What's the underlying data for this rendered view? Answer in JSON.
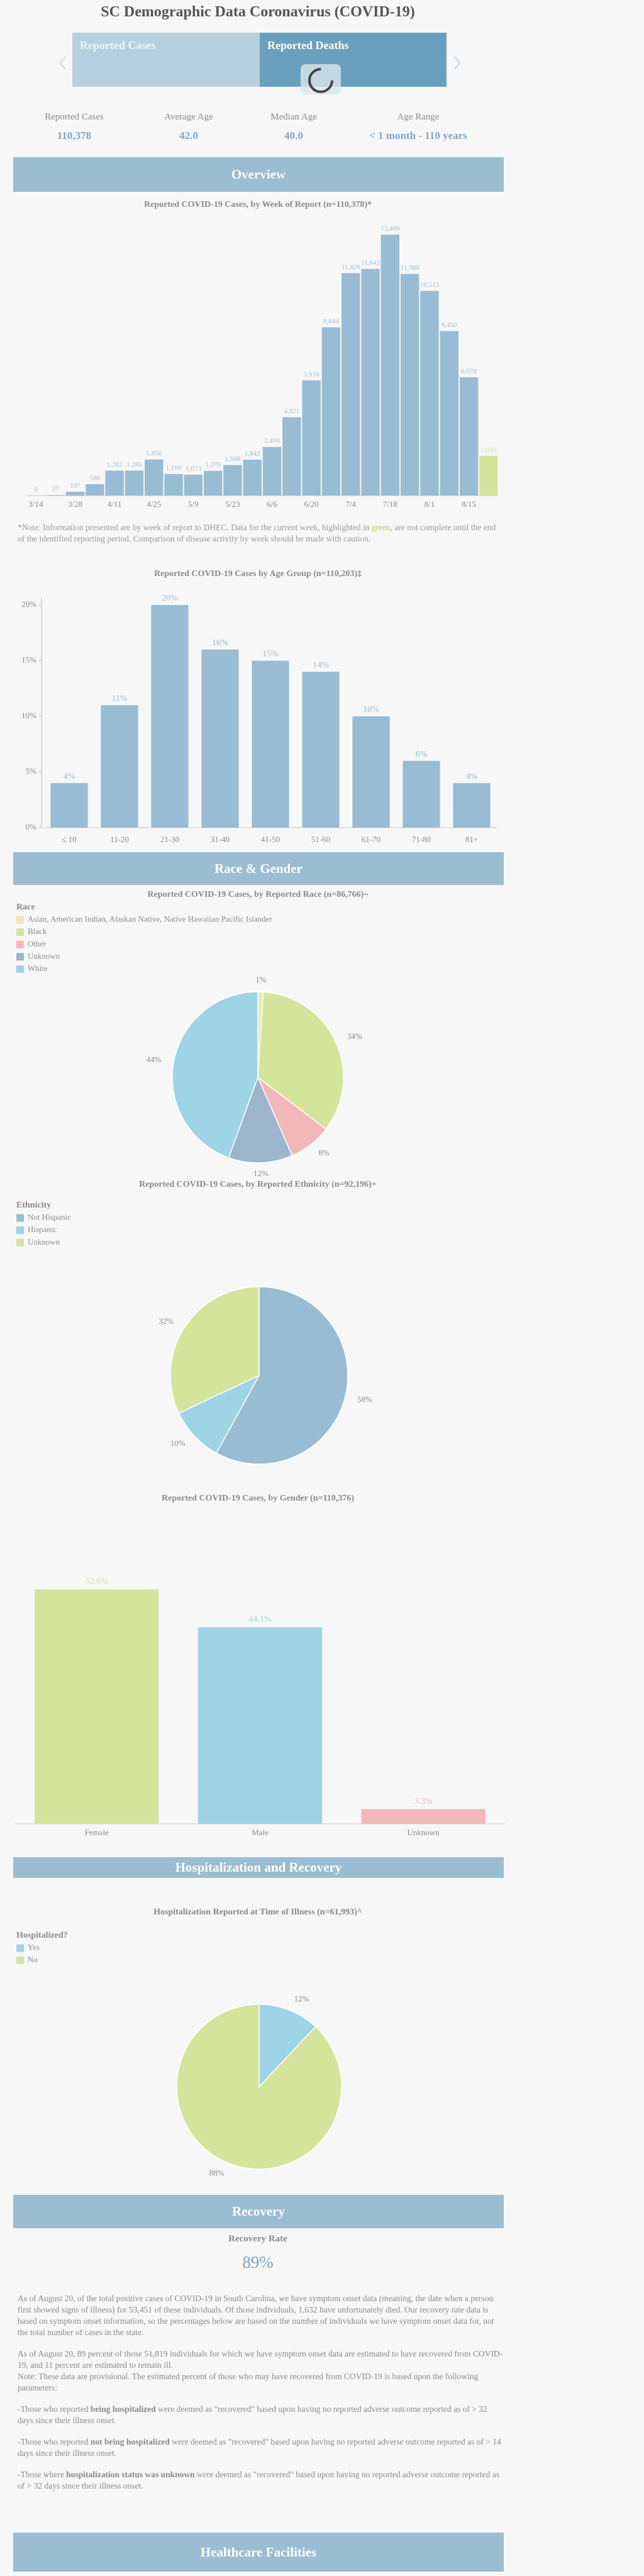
{
  "header": {
    "title": "SC Demographic Data Coronavirus (COVID-19)"
  },
  "tabs": [
    "Reported Cases",
    "Reported Deaths"
  ],
  "stats": [
    {
      "label": "Reported Cases",
      "value": "110,378"
    },
    {
      "label": "Average Age",
      "value": "42.0"
    },
    {
      "label": "Median Age",
      "value": "40.0"
    },
    {
      "label": "Age Range",
      "value": "< 1 month - 110 years"
    }
  ],
  "sections": [
    "Overview",
    "Race & Gender",
    "Hospitalization and Recovery",
    "Recovery",
    "Healthcare Facilities"
  ],
  "chart_data": [
    {
      "type": "bar",
      "title": "Reported COVID-19 Cases, by Week of Report (n=110,378)*",
      "categories": [
        "3/14",
        null,
        "3/28",
        null,
        "4/11",
        null,
        "4/25",
        null,
        "5/9",
        null,
        "5/23",
        null,
        "6/6",
        null,
        "6/20",
        null,
        "7/4",
        null,
        "7/18",
        null,
        "8/1",
        null,
        "8/15",
        null
      ],
      "values": [
        6,
        27,
        197,
        586,
        1282,
        1285,
        1856,
        1108,
        1073,
        1270,
        1568,
        1842,
        2498,
        4021,
        5916,
        8644,
        11426,
        11643,
        13406,
        11388,
        10513,
        8450,
        6078,
        2038
      ],
      "value_labels": [
        "6",
        "27",
        "197",
        "586",
        "1,282",
        "1,285",
        "1,856",
        "1,108",
        "1,073",
        "1,270",
        "1,568",
        "1,842",
        "2,498",
        "4,021",
        "5,916",
        "8,644",
        "11,426",
        "11,643",
        "13,406",
        "11,388",
        "10,513",
        "8,450",
        "6,078",
        "2,038"
      ],
      "colors": [
        "#98bcd3",
        "#98bcd3",
        "#98bcd3",
        "#98bcd3",
        "#98bcd3",
        "#98bcd3",
        "#98bcd3",
        "#98bcd3",
        "#98bcd3",
        "#98bcd3",
        "#98bcd3",
        "#98bcd3",
        "#98bcd3",
        "#98bcd3",
        "#98bcd3",
        "#98bcd3",
        "#98bcd3",
        "#98bcd3",
        "#98bcd3",
        "#98bcd3",
        "#98bcd3",
        "#98bcd3",
        "#98bcd3",
        "#d4e49b"
      ],
      "ylim": [
        0,
        14000
      ]
    },
    {
      "type": "bar",
      "title": "Reported COVID-19 Cases by Age Group (n=110,203)‡",
      "categories": [
        "≤ 10",
        "11-20",
        "21-30",
        "31-40",
        "41-50",
        "51-60",
        "61-70",
        "71-80",
        "81+"
      ],
      "values": [
        4,
        11,
        20,
        16,
        15,
        14,
        10,
        6,
        4
      ],
      "value_labels": [
        "4%",
        "11%",
        "20%",
        "16%",
        "15%",
        "14%",
        "10%",
        "6%",
        "4%"
      ],
      "color": "#98bcd3",
      "ylim": [
        0,
        20
      ],
      "yticks": [
        {
          "value": 0,
          "label": "0%"
        },
        {
          "value": 5,
          "label": "5%"
        },
        {
          "value": 10,
          "label": "10%"
        },
        {
          "value": 15,
          "label": "15%"
        },
        {
          "value": 20,
          "label": "20%"
        }
      ]
    },
    {
      "type": "pie",
      "title": "Reported COVID-19 Cases, by Reported Race (n=86,766)~",
      "legend_title": "Race",
      "categories": [
        "Asian, American Indian, Alaskan Native, Native Hawaiian Pacific Islander",
        "Black",
        "Other",
        "Unknown",
        "White"
      ],
      "values": [
        1,
        34,
        8,
        12,
        44
      ],
      "value_labels": [
        "1%",
        "34%",
        "8%",
        "12%",
        "44%"
      ],
      "colors": [
        "#efe6b4",
        "#d4e49b",
        "#f2b8b9",
        "#9bb6cc",
        "#9fd3e6"
      ]
    },
    {
      "type": "pie",
      "title": "Reported COVID-19 Cases, by Reported Ethnicity (n=92,196)+",
      "legend_title": "Ethnicity",
      "categories": [
        "Not Hispanic",
        "Hispanic",
        "Unknown"
      ],
      "values": [
        58,
        10,
        32
      ],
      "value_labels": [
        "58%",
        "10%",
        "32%"
      ],
      "colors": [
        "#98bcd3",
        "#9fd3e6",
        "#d4e49b"
      ]
    },
    {
      "type": "bar",
      "title": "Reported COVID-19 Cases, by Gender (n=110,376)",
      "categories": [
        "Female",
        "Male",
        "Unknown"
      ],
      "values": [
        52.6,
        44.1,
        3.3
      ],
      "value_labels": [
        "52.6%",
        "44.1%",
        "3.3%"
      ],
      "colors": [
        "#d4e49b",
        "#9fd3e6",
        "#f2b8b9"
      ],
      "ylim": [
        0,
        58
      ]
    },
    {
      "type": "pie",
      "title": "Hospitalization Reported at Time of Illness (n=61,993)^",
      "legend_title": "Hospitalized?",
      "categories": [
        "Yes",
        "No"
      ],
      "values": [
        12,
        88
      ],
      "value_labels": [
        "12%",
        "88%"
      ],
      "colors": [
        "#9fd3e6",
        "#d4e49b"
      ]
    }
  ],
  "chart_note": {
    "before": "*Note: Information presented are by week of report to DHEC. Data for the current week, highlighted in ",
    "highlight": "green",
    "after": ", are not complete until the end of the identified reporting period. Comparison of disease activity by week should be made with caution."
  },
  "recovery": {
    "label": "Recovery Rate",
    "value": "89%",
    "paragraphs": [
      "As of August 20, of the total positive cases of COVID-19 in South Carolina, we have symptom onset data (meaning, the date when a person first showed signs of illness) for 53,451 of these individuals. Of those individuals, 1,632 have unfortunately died. Our recovery rate data is based on symptom onset information, so the percentages below are based on the number of individuals we have symptom onset data for, not the total number of cases in the state.",
      "As of August 20, 89 percent of those 51,819 individuals for which we have symptom onset data are estimated to have recovered from COVID-19, and 11 percent are estimated to remain ill.",
      "Note: These data are provisional. The estimated percent of those who may have recovered from COVID-19 is based upon the following parameters:",
      {
        "before": "-Those who reported ",
        "bold": "being hospitalized",
        "after": " were deemed as \"recovered\" based upon having no reported adverse outcome reported as of > 32 days since their illness onset."
      },
      {
        "before": "-Those who reported ",
        "bold": "not being hospitalized",
        "after": " were deemed as \"recovered\" based upon having no reported adverse outcome reported as of > 14 days since their illness onset."
      },
      {
        "before": "-Those where ",
        "bold": "hospitalization status was unknown",
        "after": " were deemed as \"recovered\" based upon having no reported adverse outcome reported as of > 32 days since their illness onset."
      }
    ]
  }
}
